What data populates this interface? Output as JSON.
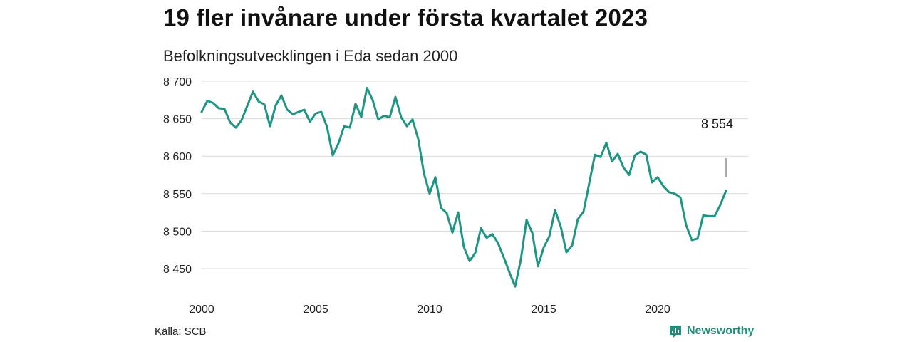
{
  "header": {
    "title": "19 fler invånare under första kvartalet 2023",
    "subtitle": "Befolkningsutvecklingen i Eda sedan 2000"
  },
  "footer": {
    "source": "Källa: SCB",
    "brand": "Newsworthy",
    "brand_icon": "newsworthy-logo-icon"
  },
  "colors": {
    "line": "#1f9682",
    "grid": "#d9d9d9",
    "brand": "#1f8f7a"
  },
  "chart_data": {
    "type": "line",
    "xlim": [
      2000,
      2023.25
    ],
    "ylim": [
      8430,
      8710
    ],
    "y_ticks": [
      8450,
      8500,
      8550,
      8600,
      8650,
      8700
    ],
    "y_tick_labels": [
      "8 450",
      "8 500",
      "8 550",
      "8 600",
      "8 650",
      "8 700"
    ],
    "x_ticks": [
      2000,
      2005,
      2010,
      2015,
      2020
    ],
    "x_tick_labels": [
      "2000",
      "2005",
      "2010",
      "2015",
      "2020"
    ],
    "grid": true,
    "end_label": "8 554",
    "x": [
      2000.0,
      2000.25,
      2000.5,
      2000.75,
      2001.0,
      2001.25,
      2001.5,
      2001.75,
      2002.0,
      2002.25,
      2002.5,
      2002.75,
      2003.0,
      2003.25,
      2003.5,
      2003.75,
      2004.0,
      2004.25,
      2004.5,
      2004.75,
      2005.0,
      2005.25,
      2005.5,
      2005.75,
      2006.0,
      2006.25,
      2006.5,
      2006.75,
      2007.0,
      2007.25,
      2007.5,
      2007.75,
      2008.0,
      2008.25,
      2008.5,
      2008.75,
      2009.0,
      2009.25,
      2009.5,
      2009.75,
      2010.0,
      2010.25,
      2010.5,
      2010.75,
      2011.0,
      2011.25,
      2011.5,
      2011.75,
      2012.0,
      2012.25,
      2012.5,
      2012.75,
      2013.0,
      2013.25,
      2013.5,
      2013.75,
      2014.0,
      2014.25,
      2014.5,
      2014.75,
      2015.0,
      2015.25,
      2015.5,
      2015.75,
      2016.0,
      2016.25,
      2016.5,
      2016.75,
      2017.0,
      2017.25,
      2017.5,
      2017.75,
      2018.0,
      2018.25,
      2018.5,
      2018.75,
      2019.0,
      2019.25,
      2019.5,
      2019.75,
      2020.0,
      2020.25,
      2020.5,
      2020.75,
      2021.0,
      2021.25,
      2021.5,
      2021.75,
      2022.0,
      2022.25,
      2022.5,
      2022.75,
      2023.0
    ],
    "series": [
      {
        "values": [
          8659,
          8674,
          8671,
          8664,
          8663,
          8645,
          8638,
          8648,
          8667,
          8686,
          8673,
          8669,
          8640,
          8668,
          8681,
          8662,
          8656,
          8659,
          8662,
          8646,
          8657,
          8659,
          8639,
          8601,
          8617,
          8640,
          8638,
          8670,
          8652,
          8691,
          8675,
          8649,
          8654,
          8652,
          8679,
          8652,
          8640,
          8649,
          8623,
          8577,
          8550,
          8572,
          8531,
          8524,
          8498,
          8525,
          8479,
          8460,
          8471,
          8504,
          8491,
          8496,
          8484,
          8465,
          8445,
          8426,
          8462,
          8515,
          8498,
          8453,
          8478,
          8493,
          8528,
          8506,
          8472,
          8481,
          8516,
          8526,
          8564,
          8602,
          8599,
          8618,
          8593,
          8603,
          8585,
          8575,
          8601,
          8606,
          8602,
          8565,
          8572,
          8560,
          8552,
          8550,
          8545,
          8508,
          8488,
          8490,
          8521,
          8520,
          8520,
          8535,
          8554
        ]
      }
    ]
  }
}
